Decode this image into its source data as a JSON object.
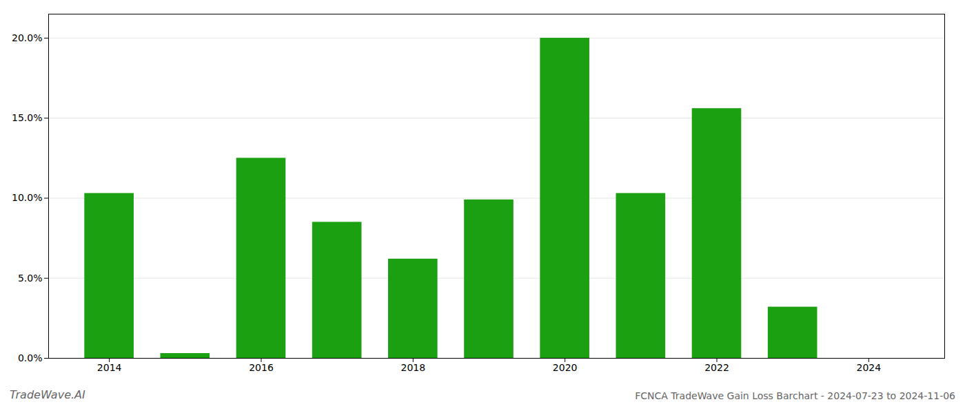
{
  "chart_data": {
    "type": "bar",
    "title": "FCNCA TradeWave Gain Loss Barchart - 2024-07-23 to 2024-11-06",
    "annotations": [
      "TradeWave.AI"
    ],
    "x": [
      2014,
      2015,
      2016,
      2017,
      2018,
      2019,
      2020,
      2021,
      2022,
      2023,
      2024
    ],
    "values": [
      0.103,
      0.003,
      0.125,
      0.085,
      0.062,
      0.099,
      0.2,
      0.103,
      0.156,
      0.032,
      0.0
    ],
    "color": "#1aa010",
    "xlim": [
      2013.2,
      2025.0
    ],
    "xticks": [
      2014,
      2016,
      2018,
      2020,
      2022,
      2024
    ],
    "ylim": [
      0,
      0.215
    ],
    "yticks": [
      {
        "value": 0.0,
        "label": "0.0%"
      },
      {
        "value": 0.05,
        "label": "5.0%"
      },
      {
        "value": 0.1,
        "label": "10.0%"
      },
      {
        "value": 0.15,
        "label": "15.0%"
      },
      {
        "value": 0.2,
        "label": "20.0%"
      }
    ],
    "grid": true
  }
}
